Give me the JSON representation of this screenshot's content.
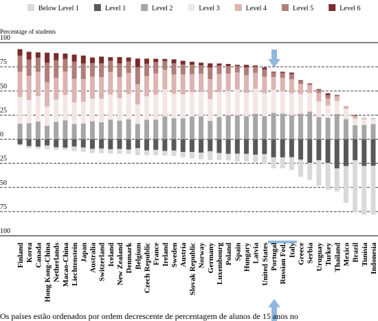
{
  "chart_data": {
    "type": "diverging-stacked-bar",
    "y_label": "Percentage of students",
    "note": "Os países estão ordenados por ordem decrescente de percentagem de alunos de 15 anos no",
    "categories": [
      "Finland",
      "Korea",
      "Canada",
      "Hong Kong-China",
      "Netherlands",
      "Macao-China",
      "Liechtenstein",
      "Japan",
      "Australia",
      "Switzerland",
      "Iceland",
      "New Zealand",
      "Denmark",
      "Belgium",
      "Czech Republic",
      "France",
      "Ireland",
      "Sweden",
      "Austria",
      "Slovak Republic",
      "Norway",
      "Germany",
      "Luxembourg",
      "Poland",
      "Spain",
      "Hungary",
      "Latvia",
      "United States",
      "Portugal",
      "Russian Fed.",
      "Italy",
      "Greece",
      "Serbia",
      "Uruguay",
      "Turkey",
      "Thailand",
      "Mexico",
      "Brazil",
      "Tunisia",
      "Indonesia"
    ],
    "category_label_colors": [
      "#000",
      "#000",
      "#000",
      "#8b3a36",
      "#000",
      "#8b3a36",
      "#8b3a36",
      "#000",
      "#000",
      "#000",
      "#000",
      "#000",
      "#000",
      "#000",
      "#000",
      "#000",
      "#000",
      "#000",
      "#000",
      "#000",
      "#000",
      "#000",
      "#000",
      "#000",
      "#000",
      "#000",
      "#8b3a36",
      "#000",
      "#000",
      "#8b3a36",
      "#000",
      "#000",
      "#8b3a36",
      "#8b3a36",
      "#000",
      "#8b3a36",
      "#000",
      "#8b3a36",
      "#8b3a36",
      "#8b3a36"
    ],
    "series": [
      {
        "name": "Below Level 1",
        "color": "#d9d9d9",
        "side": "below",
        "values": [
          1.5,
          2.5,
          2.4,
          3.9,
          2.6,
          2.4,
          4.8,
          4.7,
          4.3,
          4.9,
          4.5,
          4.9,
          4.7,
          7.2,
          5.0,
          5.6,
          4.7,
          5.6,
          5.6,
          6.7,
          6.9,
          9.2,
          7.4,
          6.8,
          8.1,
          7.8,
          7.6,
          10.2,
          11.3,
          11.4,
          13.2,
          17.8,
          17.6,
          26.3,
          27.7,
          23.8,
          38.1,
          53.3,
          50.4,
          50.5
        ]
      },
      {
        "name": "Level 1",
        "color": "#595959",
        "side": "below",
        "values": [
          5.3,
          7.1,
          7.7,
          6.5,
          8.4,
          8.8,
          7.6,
          8.6,
          10.0,
          9.6,
          10.5,
          10.1,
          10.7,
          9.3,
          11.6,
          11.0,
          12.1,
          11.7,
          13.2,
          13.2,
          13.9,
          12.4,
          14.3,
          15.2,
          14.9,
          15.2,
          16.1,
          15.5,
          18.8,
          18.8,
          18.7,
          21.2,
          24.5,
          21.8,
          24.6,
          30.2,
          27.9,
          21.9,
          27.7,
          27.6
        ]
      },
      {
        "name": "Level 2",
        "color": "#a6a6a6",
        "side": "above",
        "values": [
          16.0,
          16.6,
          18.3,
          13.9,
          18.0,
          19.5,
          15.7,
          16.3,
          18.6,
          17.5,
          20.2,
          19.2,
          20.6,
          15.9,
          20.1,
          20.2,
          23.6,
          21.7,
          21.6,
          23.5,
          23.7,
          19.0,
          22.9,
          24.8,
          24.7,
          23.8,
          26.3,
          23.9,
          27.1,
          26.6,
          24.7,
          26.3,
          28.6,
          22.9,
          22.1,
          26.1,
          20.8,
          14.4,
          14.8,
          15.6
        ]
      },
      {
        "name": "Level 3",
        "color": "#f3e6e5",
        "side": "above",
        "values": [
          27.7,
          24.1,
          26.2,
          20.0,
          23.0,
          26.3,
          22.4,
          22.4,
          23.5,
          24.3,
          26.1,
          23.2,
          26.2,
          20.1,
          24.3,
          25.9,
          28.0,
          25.5,
          24.9,
          24.9,
          25.2,
          22.6,
          25.9,
          25.3,
          26.7,
          24.3,
          25.9,
          23.8,
          24.0,
          23.0,
          22.9,
          20.2,
          19.0,
          16.1,
          12.9,
          13.4,
          10.7,
          6.8,
          5.7,
          5.2
        ]
      },
      {
        "name": "Level 4",
        "color": "#dcb4b1",
        "side": "above",
        "values": [
          26.1,
          25.0,
          25.1,
          25.0,
          22.6,
          24.1,
          24.4,
          23.6,
          22.7,
          22.5,
          23.2,
          21.9,
          21.9,
          21.0,
          20.8,
          22.1,
          20.2,
          19.8,
          20.5,
          18.9,
          18.9,
          20.6,
          18.7,
          17.7,
          17.7,
          18.2,
          16.5,
          17.0,
          13.4,
          13.9,
          14.4,
          10.6,
          8.3,
          8.9,
          7.1,
          4.8,
          2.2,
          2.7,
          1.3,
          1.0
        ]
      },
      {
        "name": "Level 5",
        "color": "#b07e7a",
        "side": "above",
        "values": [
          16.7,
          16.7,
          14.8,
          20.2,
          18.2,
          13.2,
          17.8,
          16.1,
          14.0,
          14.2,
          11.7,
          14.1,
          11.8,
          17.5,
          12.9,
          11.6,
          9.1,
          11.6,
          10.5,
          9.8,
          8.7,
          12.2,
          8.5,
          7.8,
          6.5,
          8.2,
          6.4,
          7.6,
          4.6,
          5.2,
          5.5,
          3.4,
          1.9,
          3.3,
          3.5,
          1.4,
          0.3,
          0.8,
          0.2,
          0.1
        ]
      },
      {
        "name": "Level 6",
        "color": "#7b2c2a",
        "side": "above",
        "values": [
          6.7,
          8.1,
          5.5,
          10.5,
          7.3,
          5.6,
          7.3,
          8.2,
          5.8,
          7.0,
          3.7,
          6.6,
          4.1,
          9.0,
          5.3,
          3.5,
          2.2,
          4.1,
          3.7,
          3.1,
          2.7,
          4.1,
          2.4,
          2.3,
          1.4,
          2.5,
          1.2,
          2.0,
          0.8,
          1.1,
          1.5,
          0.6,
          0.2,
          0.7,
          2.0,
          0.3,
          0.1,
          0.2,
          0.0,
          0.0
        ]
      }
    ],
    "ylim": [
      -100,
      100
    ],
    "yticks": [
      {
        "value": -100,
        "label": "100"
      },
      {
        "value": -75,
        "label": "75"
      },
      {
        "value": -50,
        "label": "50"
      },
      {
        "value": -25,
        "label": "25"
      },
      0,
      25,
      50,
      75,
      100
    ],
    "grid": true
  }
}
